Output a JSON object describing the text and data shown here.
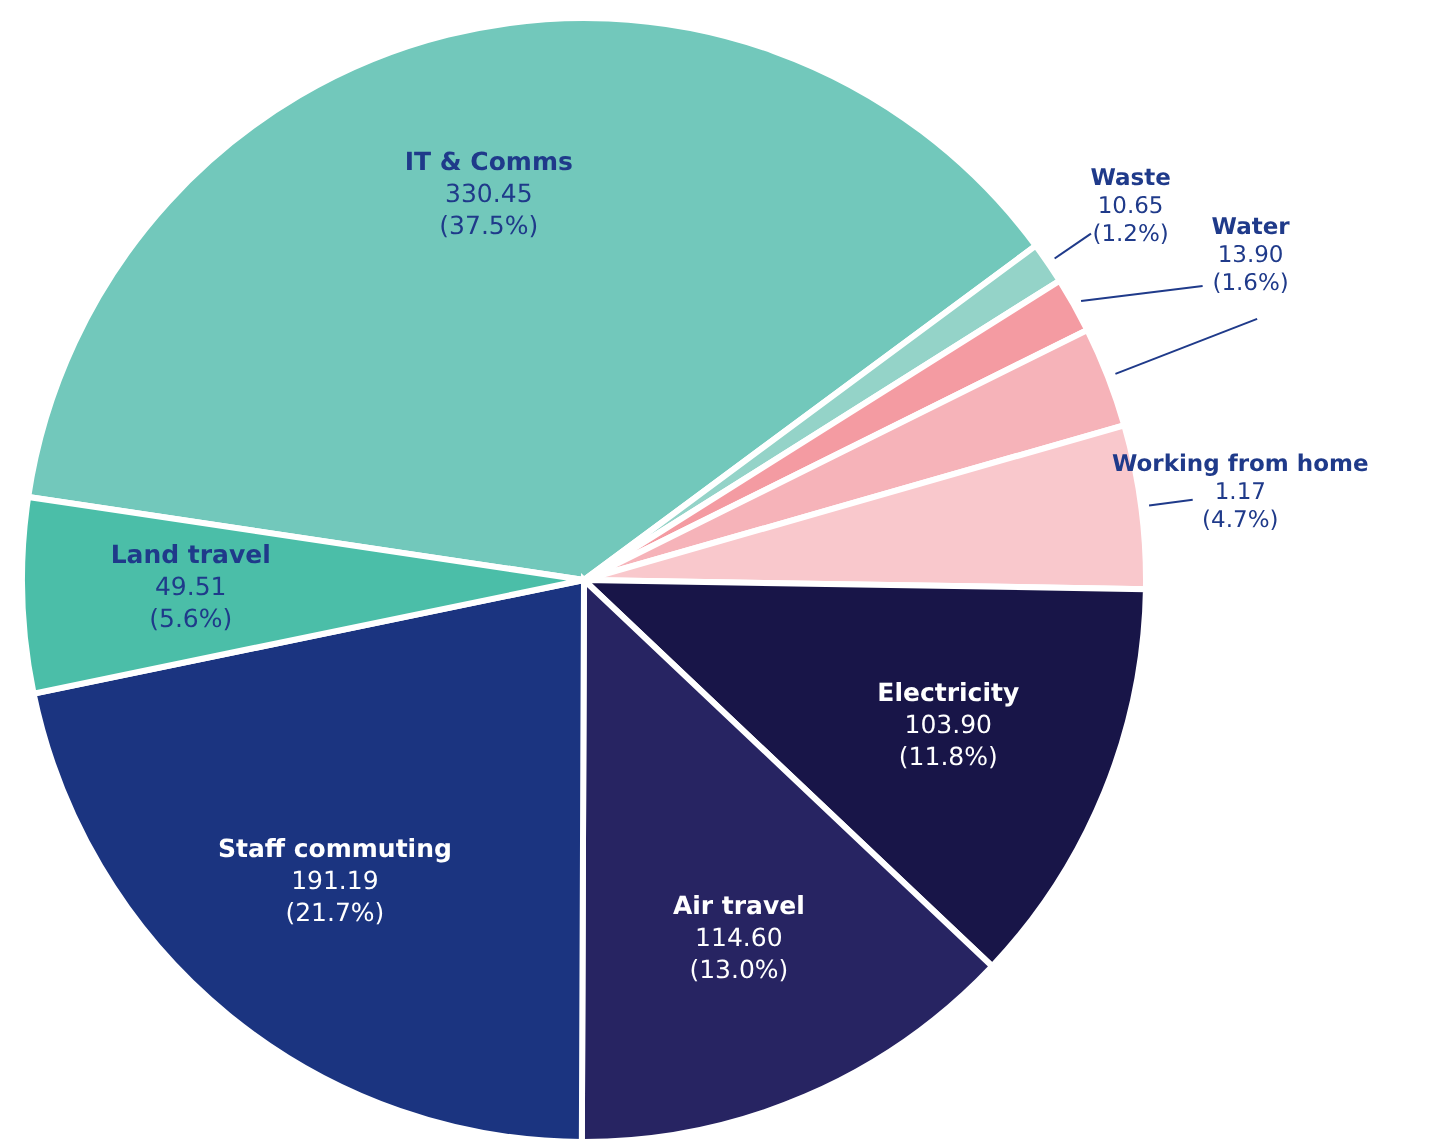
{
  "chart_data": {
    "type": "pie",
    "categories": [
      "IT & Comms",
      "Waste",
      "Water",
      null,
      "Working from home",
      "Electricity",
      "Air travel",
      "Staff commuting",
      "Land travel"
    ],
    "values": [
      37.5,
      1.2,
      1.6,
      2.9,
      4.7,
      11.8,
      13.0,
      21.7,
      5.6
    ],
    "value_labels": [
      "330.45\n(37.5%)",
      "10.65\n(1.2%)",
      "13.90\n(1.6%)",
      null,
      "1.17\n(4.7%)",
      "103.90\n(11.8%)",
      "114.60\n(13.0%)",
      "191.19\n(21.7%)",
      "49.51\n(5.6%)"
    ],
    "colors": [
      "#72c8bb",
      "#94d3c8",
      "#f49ba2",
      "#f6b3b9",
      "#f9c8cc",
      "#181548",
      "#272462",
      "#1b3480",
      "#4bbea8"
    ]
  }
}
